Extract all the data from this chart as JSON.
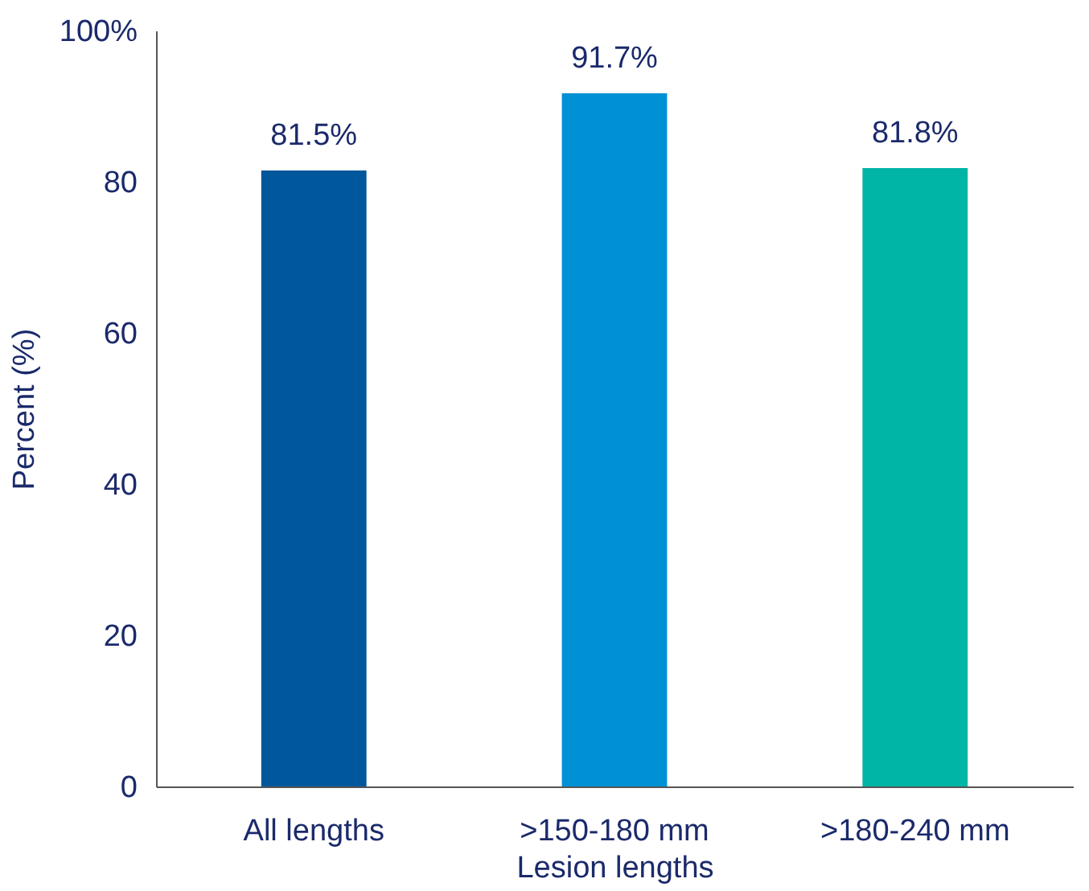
{
  "chart_data": {
    "type": "bar",
    "xlabel": "Lesion lengths",
    "ylabel": "Percent (%)",
    "categories": [
      "All lengths",
      ">150-180 mm",
      ">180-240 mm"
    ],
    "values": [
      81.5,
      91.7,
      81.8
    ],
    "colors": [
      "#00579c",
      "#0091d5",
      "#00b5a5"
    ],
    "value_labels": [
      "81.5%",
      "91.7%",
      "81.8%"
    ],
    "ylim": [
      0,
      100
    ],
    "yticks": [
      0,
      20,
      40,
      60,
      80,
      {
        "value": 100,
        "label": "100%"
      }
    ],
    "grid": false
  }
}
